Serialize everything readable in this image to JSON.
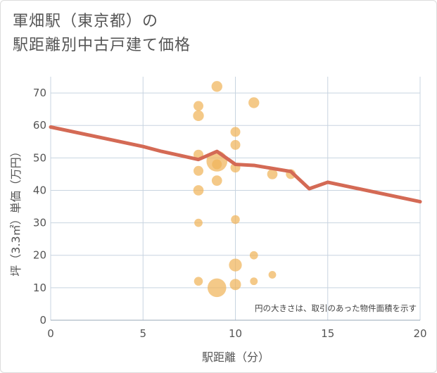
{
  "title_lines": [
    "軍畑駅（東京都）の",
    "駅距離別中古戸建て価格"
  ],
  "chart_data": {
    "type": "scatter",
    "xlabel": "駅距離（分）",
    "ylabel": "坪（3.3㎡）単価（万円）",
    "xlim": [
      0,
      20
    ],
    "ylim": [
      0,
      75
    ],
    "xticks": [
      0,
      5,
      10,
      15,
      20
    ],
    "yticks": [
      0,
      10,
      20,
      30,
      40,
      50,
      60,
      70
    ],
    "grid": true,
    "note": "円の大きさは、取引のあった物件面積を示す",
    "colors": {
      "bubble": "#f0b45a",
      "line": "#d46a55",
      "grid": "#c8d4e0"
    },
    "points": [
      {
        "x": 9,
        "y": 72,
        "size": 1.2
      },
      {
        "x": 8,
        "y": 66,
        "size": 1.0
      },
      {
        "x": 11,
        "y": 67,
        "size": 1.2
      },
      {
        "x": 8,
        "y": 63,
        "size": 1.2
      },
      {
        "x": 10,
        "y": 58,
        "size": 1.0
      },
      {
        "x": 10,
        "y": 54,
        "size": 1.0
      },
      {
        "x": 8,
        "y": 51,
        "size": 1.0
      },
      {
        "x": 9,
        "y": 49,
        "size": 4.5
      },
      {
        "x": 9,
        "y": 48,
        "size": 1.0
      },
      {
        "x": 10,
        "y": 47,
        "size": 1.0
      },
      {
        "x": 8,
        "y": 46,
        "size": 1.0
      },
      {
        "x": 12,
        "y": 45,
        "size": 1.1
      },
      {
        "x": 13,
        "y": 45,
        "size": 1.0
      },
      {
        "x": 9,
        "y": 43,
        "size": 1.1
      },
      {
        "x": 8,
        "y": 40,
        "size": 1.1
      },
      {
        "x": 10,
        "y": 31,
        "size": 0.8
      },
      {
        "x": 8,
        "y": 30,
        "size": 0.7
      },
      {
        "x": 11,
        "y": 20,
        "size": 0.7
      },
      {
        "x": 10,
        "y": 17,
        "size": 1.7
      },
      {
        "x": 12,
        "y": 14,
        "size": 0.6
      },
      {
        "x": 8,
        "y": 12,
        "size": 0.8
      },
      {
        "x": 11,
        "y": 12,
        "size": 0.6
      },
      {
        "x": 10,
        "y": 11,
        "size": 1.3
      },
      {
        "x": 9,
        "y": 10,
        "size": 3.6
      }
    ],
    "trend": {
      "x": [
        0,
        5,
        6,
        8,
        9,
        10,
        11,
        13,
        14,
        15,
        20
      ],
      "y": [
        59.5,
        53.5,
        52,
        49.5,
        52,
        48,
        47.7,
        45.8,
        40.5,
        42.5,
        36.5
      ]
    }
  }
}
